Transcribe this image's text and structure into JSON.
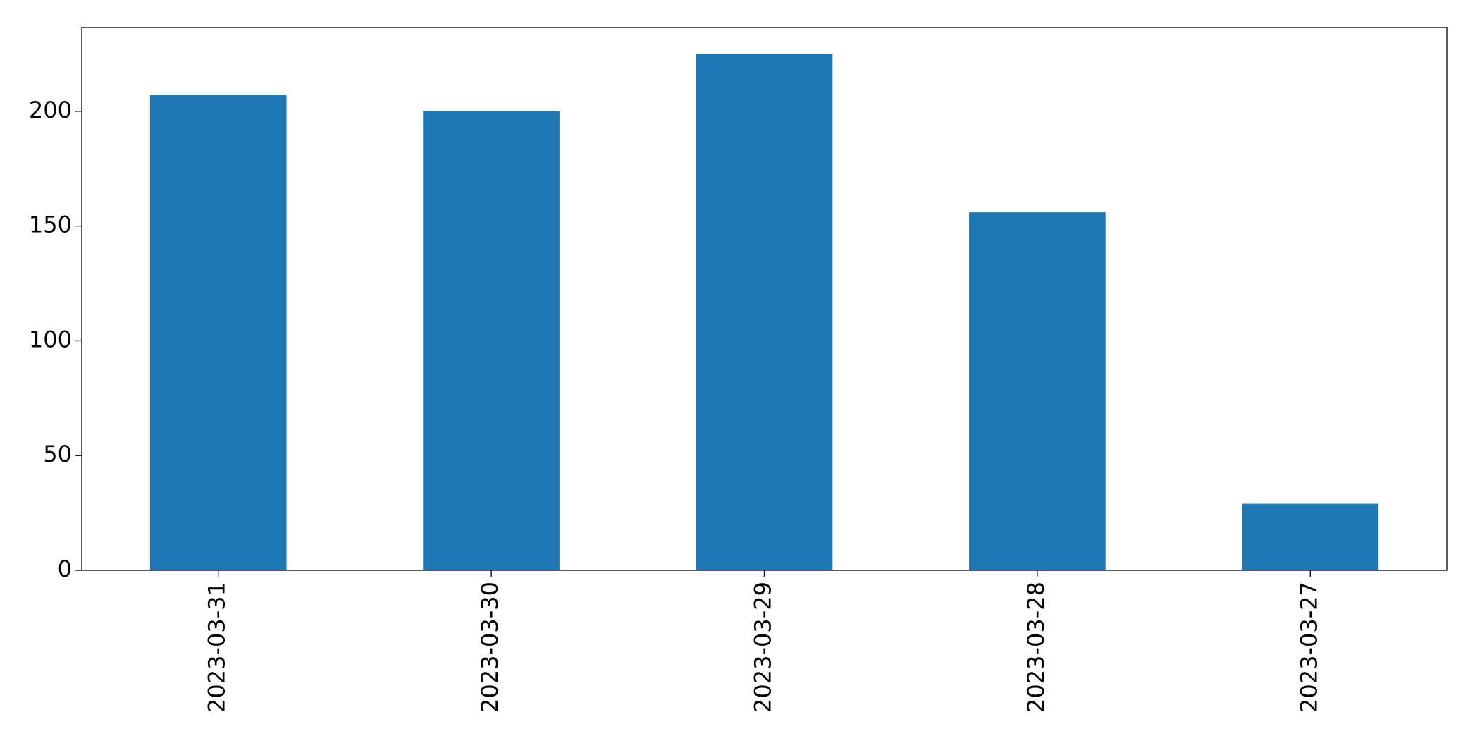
{
  "chart_data": {
    "type": "bar",
    "categories": [
      "2023-03-31",
      "2023-03-30",
      "2023-03-29",
      "2023-03-28",
      "2023-03-27"
    ],
    "values": [
      207,
      200,
      225,
      156,
      29
    ],
    "color": "#1f77b4",
    "ylim": [
      0,
      236.5
    ],
    "yticks": [
      0,
      50,
      100,
      150,
      200
    ],
    "grid": false
  }
}
